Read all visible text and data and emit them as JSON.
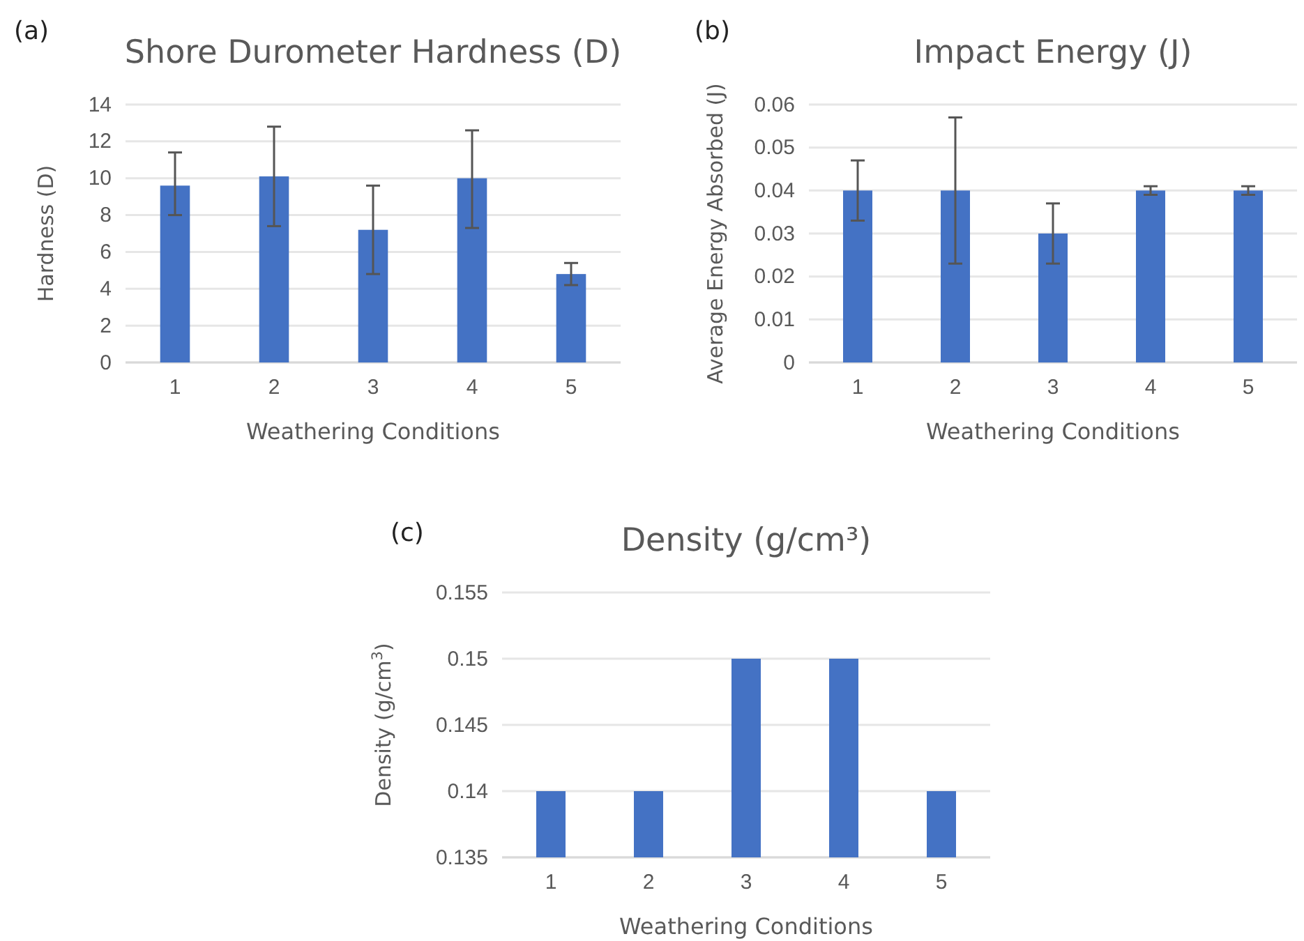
{
  "chart_data": [
    {
      "type": "bar",
      "title": "Shore Durometer Hardness (D)",
      "xlabel": "Weathering Conditions",
      "ylabel": "Hardness (D)",
      "annotations": [
        "(a)"
      ],
      "categories": [
        "1",
        "2",
        "3",
        "4",
        "5"
      ],
      "values": [
        9.6,
        10.1,
        7.2,
        10.0,
        4.8
      ],
      "errors": [
        [
          8.0,
          11.4
        ],
        [
          7.4,
          12.8
        ],
        [
          4.8,
          9.6
        ],
        [
          7.3,
          12.6
        ],
        [
          4.2,
          5.4
        ]
      ],
      "color": "#4472c4",
      "ylim": [
        0,
        14
      ],
      "yticks": [
        0,
        2,
        4,
        6,
        8,
        10,
        12,
        14
      ],
      "grid": "y"
    },
    {
      "type": "bar",
      "title": "Impact Energy (J)",
      "xlabel": "Weathering Conditions",
      "ylabel": "Average Energy Absorbed (J)",
      "annotations": [
        "(b)"
      ],
      "categories": [
        "1",
        "2",
        "3",
        "4",
        "5"
      ],
      "values": [
        0.04,
        0.04,
        0.03,
        0.04,
        0.04
      ],
      "errors": [
        [
          0.033,
          0.047
        ],
        [
          0.023,
          0.057
        ],
        [
          0.023,
          0.037
        ],
        [
          0.039,
          0.041
        ],
        [
          0.039,
          0.041
        ]
      ],
      "color": "#4472c4",
      "ylim": [
        0,
        0.06
      ],
      "yticks": [
        0,
        0.01,
        0.02,
        0.03,
        0.04,
        0.05,
        0.06
      ],
      "grid": "y"
    },
    {
      "type": "bar",
      "title": "Density (g/cm³)",
      "xlabel": "Weathering Conditions",
      "ylabel": "Density (g/cm$^{3}$)",
      "annotations": [
        "(c)"
      ],
      "categories": [
        "1",
        "2",
        "3",
        "4",
        "5"
      ],
      "values": [
        0.14,
        0.14,
        0.15,
        0.15,
        0.14
      ],
      "color": "#4472c4",
      "ylim": [
        0.135,
        0.155
      ],
      "yticks": [
        0.135,
        0.14,
        0.145,
        0.15,
        0.155
      ],
      "grid": "y"
    }
  ]
}
